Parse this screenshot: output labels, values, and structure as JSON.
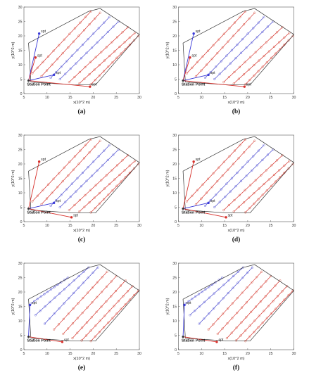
{
  "figure": {
    "panel_captions": [
      "(a)",
      "(b)",
      "(c)",
      "(d)",
      "(e)",
      "(f)"
    ]
  },
  "colors": {
    "boundary": "#333333",
    "red_path": "#d62f2a",
    "red_marker": "#e07a6a",
    "blue_path": "#4a4ad0",
    "blue_marker": "#7a7ae0",
    "station_arrow": "#3a3ad8",
    "axis": "#555555"
  },
  "chart_data": [
    {
      "type": "scatter",
      "panel": "(a)",
      "xlabel": "x(10^2 m)",
      "ylabel": "y(10^2 m)",
      "xlim": [
        5,
        30
      ],
      "ylim": [
        0,
        30
      ],
      "xticks": [
        5,
        10,
        15,
        20,
        25,
        30
      ],
      "yticks": [
        0,
        5,
        10,
        15,
        20,
        25,
        30
      ],
      "boundary": [
        [
          6.5,
          4.0
        ],
        [
          6.0,
          17.5
        ],
        [
          19.0,
          28.5
        ],
        [
          21.5,
          29.5
        ],
        [
          30.0,
          20.5
        ],
        [
          20.5,
          3.0
        ],
        [
          16.0,
          3.0
        ],
        [
          6.5,
          4.0
        ]
      ],
      "station_point": {
        "label": "Station Point",
        "x": 6.0,
        "y": 4.5
      },
      "spt_points": [
        {
          "label": "spt",
          "x": 8.3,
          "y": 20.8,
          "color": "blue"
        },
        {
          "label": "spt",
          "x": 7.5,
          "y": 12.5,
          "color": "red"
        },
        {
          "label": "spt",
          "x": 11.5,
          "y": 6.5,
          "color": "blue"
        },
        {
          "label": "spt",
          "x": 19.3,
          "y": 2.4,
          "color": "red"
        }
      ],
      "sweep_lines": [
        {
          "color": "red",
          "start": [
            6.8,
            7.0
          ],
          "end": [
            19.5,
            28.5
          ]
        },
        {
          "color": "red",
          "start": [
            8.8,
            6.0
          ],
          "end": [
            21.5,
            28.0
          ]
        },
        {
          "color": "blue",
          "start": [
            10.8,
            5.5
          ],
          "end": [
            23.5,
            26.5
          ]
        },
        {
          "color": "blue",
          "start": [
            12.8,
            5.0
          ],
          "end": [
            25.5,
            25.0
          ]
        },
        {
          "color": "red",
          "start": [
            14.8,
            4.0
          ],
          "end": [
            27.5,
            23.0
          ]
        },
        {
          "color": "red",
          "start": [
            17.0,
            3.5
          ],
          "end": [
            29.0,
            21.0
          ]
        },
        {
          "color": "red",
          "start": [
            19.5,
            3.2
          ],
          "end": [
            29.8,
            20.0
          ]
        }
      ]
    },
    {
      "type": "scatter",
      "panel": "(b)",
      "xlabel": "x(10^2 m)",
      "ylabel": "y(10^2 m)",
      "xlim": [
        5,
        30
      ],
      "ylim": [
        0,
        30
      ],
      "xticks": [
        5,
        10,
        15,
        20,
        25,
        30
      ],
      "yticks": [
        0,
        5,
        10,
        15,
        20,
        25,
        30
      ],
      "boundary": [
        [
          6.5,
          4.0
        ],
        [
          6.0,
          17.5
        ],
        [
          19.0,
          28.5
        ],
        [
          21.5,
          29.5
        ],
        [
          30.0,
          20.5
        ],
        [
          20.5,
          3.0
        ],
        [
          16.0,
          3.0
        ],
        [
          6.5,
          4.0
        ]
      ],
      "station_point": {
        "label": "Station Point",
        "x": 6.0,
        "y": 4.5
      },
      "spt_points": [
        {
          "label": "spt",
          "x": 8.3,
          "y": 20.8,
          "color": "blue"
        },
        {
          "label": "spt",
          "x": 7.5,
          "y": 12.5,
          "color": "red"
        },
        {
          "label": "spt",
          "x": 11.5,
          "y": 6.5,
          "color": "blue"
        },
        {
          "label": "spt",
          "x": 19.3,
          "y": 2.4,
          "color": "red"
        }
      ],
      "sweep_lines": [
        {
          "color": "red",
          "start": [
            6.8,
            7.0
          ],
          "end": [
            19.5,
            28.5
          ]
        },
        {
          "color": "red",
          "start": [
            8.8,
            6.0
          ],
          "end": [
            21.5,
            28.0
          ]
        },
        {
          "color": "blue",
          "start": [
            10.8,
            5.5
          ],
          "end": [
            23.5,
            26.5
          ]
        },
        {
          "color": "blue",
          "start": [
            12.8,
            5.0
          ],
          "end": [
            25.5,
            25.0
          ]
        },
        {
          "color": "red",
          "start": [
            14.8,
            4.0
          ],
          "end": [
            27.5,
            23.0
          ]
        },
        {
          "color": "red",
          "start": [
            17.0,
            3.5
          ],
          "end": [
            29.0,
            21.0
          ]
        },
        {
          "color": "red",
          "start": [
            19.5,
            3.2
          ],
          "end": [
            29.8,
            20.0
          ]
        }
      ]
    },
    {
      "type": "scatter",
      "panel": "(c)",
      "xlabel": "x(10^2 m)",
      "ylabel": "y(10^2 m)",
      "xlim": [
        5,
        30
      ],
      "ylim": [
        0,
        30
      ],
      "xticks": [
        5,
        10,
        15,
        20,
        25,
        30
      ],
      "yticks": [
        0,
        5,
        10,
        15,
        20,
        25,
        30
      ],
      "boundary": [
        [
          6.5,
          4.0
        ],
        [
          6.0,
          17.5
        ],
        [
          19.0,
          28.5
        ],
        [
          21.5,
          29.5
        ],
        [
          30.0,
          20.5
        ],
        [
          20.5,
          3.0
        ],
        [
          16.0,
          3.0
        ],
        [
          6.5,
          4.0
        ]
      ],
      "station_point": {
        "label": "Station Point",
        "x": 6.0,
        "y": 4.5
      },
      "spt_points": [
        {
          "label": "spt",
          "x": 8.3,
          "y": 20.8,
          "color": "red"
        },
        {
          "label": "spt",
          "x": 11.5,
          "y": 6.5,
          "color": "blue"
        },
        {
          "label": "spt",
          "x": 15.3,
          "y": 1.5,
          "color": "red"
        }
      ],
      "sweep_lines": [
        {
          "color": "red",
          "start": [
            6.8,
            7.0
          ],
          "end": [
            19.5,
            28.5
          ]
        },
        {
          "color": "red",
          "start": [
            8.8,
            6.0
          ],
          "end": [
            21.5,
            28.0
          ]
        },
        {
          "color": "blue",
          "start": [
            10.8,
            5.5
          ],
          "end": [
            23.5,
            26.5
          ]
        },
        {
          "color": "blue",
          "start": [
            12.8,
            5.0
          ],
          "end": [
            25.5,
            25.0
          ]
        },
        {
          "color": "red",
          "start": [
            14.8,
            4.0
          ],
          "end": [
            27.5,
            23.0
          ]
        },
        {
          "color": "red",
          "start": [
            17.0,
            3.5
          ],
          "end": [
            29.0,
            21.0
          ]
        },
        {
          "color": "red",
          "start": [
            19.5,
            3.2
          ],
          "end": [
            29.8,
            20.0
          ]
        }
      ]
    },
    {
      "type": "scatter",
      "panel": "(d)",
      "xlabel": "x(10^2 m)",
      "ylabel": "y(10^2 m)",
      "xlim": [
        5,
        30
      ],
      "ylim": [
        0,
        30
      ],
      "xticks": [
        5,
        10,
        15,
        20,
        25,
        30
      ],
      "yticks": [
        0,
        5,
        10,
        15,
        20,
        25,
        30
      ],
      "boundary": [
        [
          6.5,
          4.0
        ],
        [
          6.0,
          17.5
        ],
        [
          19.0,
          28.5
        ],
        [
          21.5,
          29.5
        ],
        [
          30.0,
          20.5
        ],
        [
          20.5,
          3.0
        ],
        [
          16.0,
          3.0
        ],
        [
          6.5,
          4.0
        ]
      ],
      "station_point": {
        "label": "Station Point",
        "x": 6.0,
        "y": 4.5
      },
      "spt_points": [
        {
          "label": "spt",
          "x": 8.3,
          "y": 20.8,
          "color": "red"
        },
        {
          "label": "spt",
          "x": 11.5,
          "y": 6.5,
          "color": "blue"
        },
        {
          "label": "spt",
          "x": 15.3,
          "y": 1.5,
          "color": "red"
        }
      ],
      "sweep_lines": [
        {
          "color": "red",
          "start": [
            6.8,
            7.0
          ],
          "end": [
            19.5,
            28.5
          ]
        },
        {
          "color": "red",
          "start": [
            8.8,
            6.0
          ],
          "end": [
            21.5,
            28.0
          ]
        },
        {
          "color": "blue",
          "start": [
            10.8,
            5.5
          ],
          "end": [
            23.5,
            26.5
          ]
        },
        {
          "color": "blue",
          "start": [
            12.8,
            5.0
          ],
          "end": [
            25.5,
            25.0
          ]
        },
        {
          "color": "red",
          "start": [
            14.8,
            4.0
          ],
          "end": [
            27.5,
            23.0
          ]
        },
        {
          "color": "red",
          "start": [
            17.0,
            3.5
          ],
          "end": [
            29.0,
            21.0
          ]
        },
        {
          "color": "red",
          "start": [
            19.5,
            3.2
          ],
          "end": [
            29.8,
            20.0
          ]
        }
      ]
    },
    {
      "type": "scatter",
      "panel": "(e)",
      "xlabel": "x(10^2 m)",
      "ylabel": "y(10^2 m)",
      "xlim": [
        5,
        30
      ],
      "ylim": [
        0,
        30
      ],
      "xticks": [
        5,
        10,
        15,
        20,
        25,
        30
      ],
      "yticks": [
        0,
        5,
        10,
        15,
        20,
        25,
        30
      ],
      "boundary": [
        [
          6.5,
          4.0
        ],
        [
          6.0,
          17.5
        ],
        [
          19.0,
          28.5
        ],
        [
          21.5,
          29.5
        ],
        [
          30.0,
          20.5
        ],
        [
          20.5,
          3.0
        ],
        [
          16.0,
          3.0
        ],
        [
          6.5,
          4.0
        ]
      ],
      "station_point": {
        "label": "Station Point",
        "x": 6.0,
        "y": 4.5
      },
      "spt_points": [
        {
          "label": "spt",
          "x": 6.3,
          "y": 15.5,
          "color": "blue"
        },
        {
          "label": "spt",
          "x": 13.3,
          "y": 2.7,
          "color": "red"
        }
      ],
      "sweep_lines": [
        {
          "color": "blue",
          "start": [
            6.5,
            16.0
          ],
          "end": [
            14.5,
            25.0
          ]
        },
        {
          "color": "blue",
          "start": [
            7.5,
            12.0
          ],
          "end": [
            19.0,
            28.5
          ]
        },
        {
          "color": "blue",
          "start": [
            9.5,
            9.0
          ],
          "end": [
            21.0,
            28.5
          ]
        },
        {
          "color": "red",
          "start": [
            11.5,
            7.0
          ],
          "end": [
            23.0,
            27.0
          ]
        },
        {
          "color": "red",
          "start": [
            13.5,
            5.5
          ],
          "end": [
            25.0,
            25.5
          ]
        },
        {
          "color": "red",
          "start": [
            15.5,
            4.0
          ],
          "end": [
            27.0,
            24.0
          ]
        },
        {
          "color": "red",
          "start": [
            17.5,
            3.2
          ],
          "end": [
            28.5,
            22.0
          ]
        },
        {
          "color": "red",
          "start": [
            19.5,
            3.0
          ],
          "end": [
            29.8,
            20.5
          ]
        }
      ]
    },
    {
      "type": "scatter",
      "panel": "(f)",
      "xlabel": "x(10^2 m)",
      "ylabel": "y(10^2 m)",
      "xlim": [
        5,
        30
      ],
      "ylim": [
        0,
        30
      ],
      "xticks": [
        5,
        10,
        15,
        20,
        25,
        30
      ],
      "yticks": [
        0,
        5,
        10,
        15,
        20,
        25,
        30
      ],
      "boundary": [
        [
          6.5,
          4.0
        ],
        [
          6.0,
          17.5
        ],
        [
          19.0,
          28.5
        ],
        [
          21.5,
          29.5
        ],
        [
          30.0,
          20.5
        ],
        [
          20.5,
          3.0
        ],
        [
          16.0,
          3.0
        ],
        [
          6.5,
          4.0
        ]
      ],
      "station_point": {
        "label": "Station Point",
        "x": 6.0,
        "y": 4.5
      },
      "spt_points": [
        {
          "label": "spt",
          "x": 6.3,
          "y": 15.5,
          "color": "blue"
        },
        {
          "label": "spt",
          "x": 13.3,
          "y": 2.7,
          "color": "red"
        }
      ],
      "sweep_lines": [
        {
          "color": "blue",
          "start": [
            6.5,
            16.0
          ],
          "end": [
            14.5,
            25.0
          ]
        },
        {
          "color": "blue",
          "start": [
            7.5,
            12.0
          ],
          "end": [
            19.0,
            28.5
          ]
        },
        {
          "color": "blue",
          "start": [
            9.5,
            9.0
          ],
          "end": [
            21.0,
            28.5
          ]
        },
        {
          "color": "red",
          "start": [
            11.5,
            7.0
          ],
          "end": [
            23.0,
            27.0
          ]
        },
        {
          "color": "red",
          "start": [
            13.5,
            5.5
          ],
          "end": [
            25.0,
            25.5
          ]
        },
        {
          "color": "red",
          "start": [
            15.5,
            4.0
          ],
          "end": [
            27.0,
            24.0
          ]
        },
        {
          "color": "red",
          "start": [
            17.5,
            3.2
          ],
          "end": [
            28.5,
            22.0
          ]
        },
        {
          "color": "red",
          "start": [
            19.5,
            3.0
          ],
          "end": [
            29.8,
            20.5
          ]
        }
      ]
    }
  ]
}
